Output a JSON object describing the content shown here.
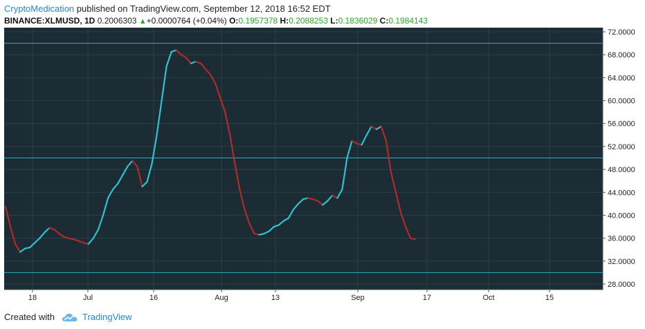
{
  "header": {
    "author": "CryptoMedication",
    "published_text": "published on TradingView.com, September 12, 2018 16:52 EDT"
  },
  "symbol_line": {
    "symbol": "BINANCE:XLMUSD, 1D",
    "last": "0.2006303",
    "change": "+0.0000764 (+0.04%)",
    "o_label": "O:",
    "o_val": "0.1957378",
    "h_label": "H:",
    "h_val": "0.2088253",
    "l_label": "L:",
    "l_val": "0.1836029",
    "c_label": "C:",
    "c_val": "0.1984143"
  },
  "colors": {
    "pane_bg": "#1b2c34",
    "grid": "#2a4048",
    "band_line": "#26b6c4",
    "up": "#2ec4cf",
    "down": "#b22a2a",
    "axis_text": "#222222"
  },
  "chart_data": {
    "type": "line",
    "y_axis_labels": [
      "72.0000",
      "68.0000",
      "64.0000",
      "60.0000",
      "56.0000",
      "52.0000",
      "48.0000",
      "44.0000",
      "40.0000",
      "36.0000",
      "32.0000",
      "28.0000"
    ],
    "x_axis_labels": [
      "18",
      "Jul",
      "16",
      "Aug",
      "13",
      "Sep",
      "17",
      "Oct",
      "15"
    ],
    "ylim": [
      28,
      72
    ],
    "horizontal_lines": [
      70,
      50,
      30
    ],
    "series": [
      {
        "points": [
          [
            0,
            41.5
          ],
          [
            1,
            38
          ],
          [
            2,
            35
          ],
          [
            3,
            33.6
          ],
          [
            4,
            34.2
          ],
          [
            5,
            34.4
          ],
          [
            6,
            35.2
          ],
          [
            7,
            36
          ],
          [
            8,
            37
          ],
          [
            9,
            37.8
          ],
          [
            10,
            37.5
          ],
          [
            11,
            36.8
          ],
          [
            12,
            36.2
          ],
          [
            13,
            36
          ],
          [
            14,
            35.8
          ],
          [
            15,
            35.5
          ],
          [
            16,
            35.2
          ],
          [
            17,
            35
          ],
          [
            18,
            36
          ],
          [
            19,
            37.5
          ],
          [
            20,
            40
          ],
          [
            21,
            43
          ],
          [
            22,
            44.5
          ],
          [
            23,
            45.5
          ],
          [
            24,
            47
          ],
          [
            25,
            48.5
          ],
          [
            26,
            49.5
          ],
          [
            27,
            48.5
          ],
          [
            28,
            45
          ],
          [
            29,
            45.8
          ],
          [
            30,
            49
          ],
          [
            31,
            54
          ],
          [
            32,
            60
          ],
          [
            33,
            66
          ],
          [
            34,
            68.5
          ],
          [
            35,
            68.8
          ],
          [
            36,
            68
          ],
          [
            37,
            67.5
          ],
          [
            38,
            66.5
          ],
          [
            39,
            66.8
          ],
          [
            40,
            66.5
          ],
          [
            41,
            65.5
          ],
          [
            42,
            64.5
          ],
          [
            43,
            63
          ],
          [
            44,
            60.5
          ],
          [
            45,
            58
          ],
          [
            46,
            54
          ],
          [
            47,
            49
          ],
          [
            48,
            44.5
          ],
          [
            49,
            41
          ],
          [
            50,
            38.5
          ],
          [
            51,
            36.8
          ],
          [
            52,
            36.6
          ],
          [
            53,
            36.8
          ],
          [
            54,
            37.2
          ],
          [
            55,
            38
          ],
          [
            56,
            38.3
          ],
          [
            57,
            39
          ],
          [
            58,
            39.5
          ],
          [
            59,
            41
          ],
          [
            60,
            42
          ],
          [
            61,
            42.8
          ],
          [
            62,
            43
          ],
          [
            63,
            42.8
          ],
          [
            64,
            42.5
          ],
          [
            65,
            41.8
          ],
          [
            66,
            42.5
          ],
          [
            67,
            43.5
          ],
          [
            68,
            43
          ],
          [
            69,
            44.5
          ],
          [
            70,
            50
          ],
          [
            71,
            53
          ],
          [
            72,
            52.5
          ],
          [
            73,
            52.3
          ],
          [
            74,
            54
          ],
          [
            75,
            55.5
          ],
          [
            76,
            55
          ],
          [
            77,
            55.5
          ],
          [
            78,
            53
          ],
          [
            79,
            47.5
          ],
          [
            80,
            44
          ],
          [
            81,
            40.5
          ],
          [
            82,
            38
          ],
          [
            83,
            36
          ],
          [
            84,
            35.8
          ]
        ]
      }
    ]
  },
  "footer": {
    "created_with": "Created with",
    "brand": "TradingView"
  }
}
